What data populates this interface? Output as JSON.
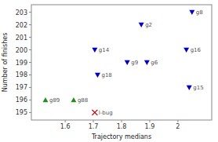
{
  "chart_data": {
    "type": "scatter",
    "xlabel": "Trajectory medians",
    "ylabel": "Number of finishes",
    "xlim": [
      1.48,
      2.12
    ],
    "ylim": [
      194.4,
      203.6
    ],
    "xticks": [
      1.6,
      1.7,
      1.8,
      1.9,
      2.0
    ],
    "yticks": [
      195,
      196,
      197,
      198,
      199,
      200,
      201,
      202,
      203
    ],
    "grid": false,
    "series": [
      {
        "color": "#0000cc",
        "marker": "triangle-down",
        "x": [
          2.05,
          1.87,
          2.03,
          1.705,
          1.82,
          1.89,
          1.715,
          2.04
        ],
        "values": [
          203,
          202,
          200,
          200,
          199,
          199,
          198,
          197
        ],
        "annotations": [
          "g8",
          "g2",
          "g16",
          "g14",
          "g9",
          "g6",
          "g18",
          "g15"
        ]
      },
      {
        "color": "#228B22",
        "marker": "triangle-up",
        "x": [
          1.53,
          1.63
        ],
        "values": [
          196,
          196
        ],
        "annotations": [
          "g89",
          "g88"
        ]
      },
      {
        "color": "#cc0000",
        "marker": "x",
        "x": [
          1.705
        ],
        "values": [
          195
        ],
        "annotations": [
          "l-bug"
        ]
      }
    ]
  }
}
